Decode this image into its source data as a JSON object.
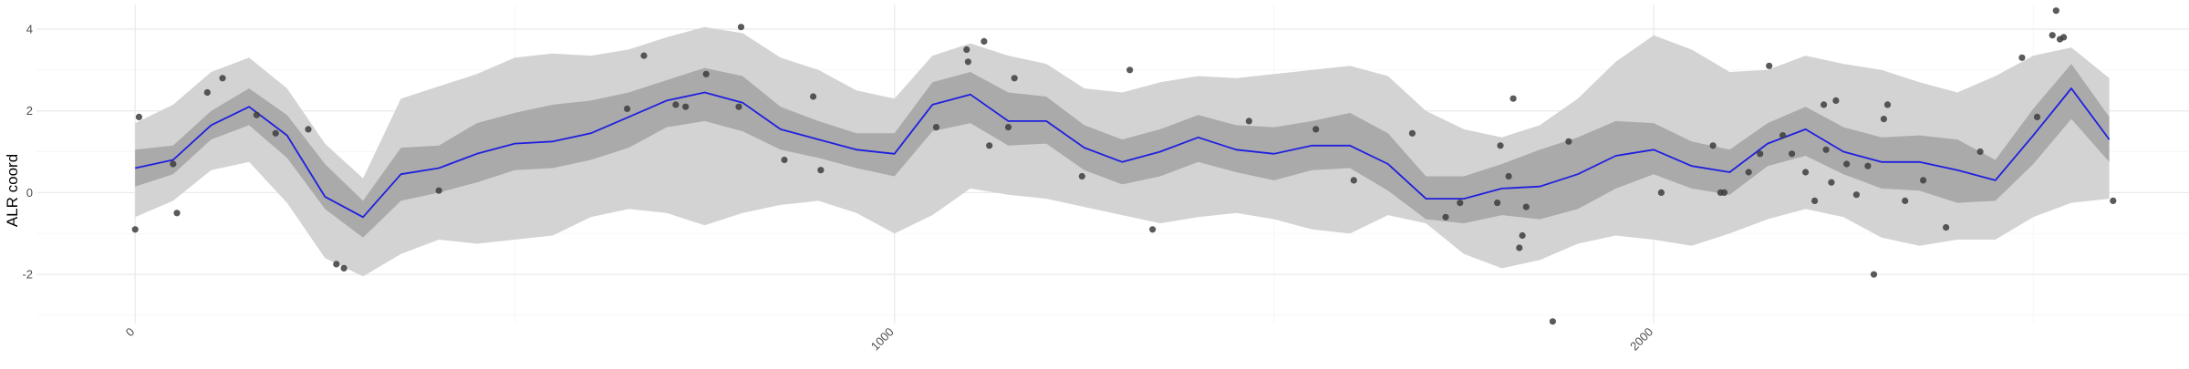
{
  "chart_data": {
    "type": "line",
    "title": "",
    "xlabel": "",
    "ylabel": "ALR coord",
    "xlim": [
      -130,
      2705
    ],
    "ylim": [
      -3.2,
      4.6
    ],
    "x_ticks": [
      0,
      1000,
      2000
    ],
    "x_tick_labels": [
      "0",
      "1000",
      "2000"
    ],
    "y_ticks": [
      -2,
      0,
      2,
      4
    ],
    "y_tick_labels": [
      "-2",
      "0",
      "2",
      "4"
    ],
    "grid": true,
    "colors": {
      "fit_line": "#1f1fe0",
      "inner_band": "#aaaaaa",
      "outer_band": "#d3d3d3",
      "points": "#3d3d3d",
      "grid": "#ebebeb"
    },
    "series": [
      {
        "type": "ribbon",
        "role": "outer_band",
        "x": [
          0,
          50,
          100,
          150,
          200,
          250,
          300,
          350,
          400,
          450,
          500,
          550,
          600,
          650,
          700,
          750,
          800,
          850,
          900,
          950,
          1000,
          1050,
          1100,
          1150,
          1200,
          1250,
          1300,
          1350,
          1400,
          1450,
          1500,
          1550,
          1600,
          1650,
          1700,
          1750,
          1800,
          1850,
          1900,
          1950,
          2000,
          2050,
          2100,
          2150,
          2200,
          2250,
          2300,
          2350,
          2400,
          2450,
          2500,
          2550,
          2600
        ],
        "lower": [
          -0.6,
          -0.2,
          0.55,
          0.75,
          -0.25,
          -1.6,
          -2.05,
          -1.5,
          -1.15,
          -1.25,
          -1.15,
          -1.05,
          -0.6,
          -0.4,
          -0.5,
          -0.8,
          -0.5,
          -0.3,
          -0.2,
          -0.5,
          -1.0,
          -0.55,
          0.1,
          -0.05,
          -0.15,
          -0.35,
          -0.55,
          -0.75,
          -0.6,
          -0.5,
          -0.65,
          -0.9,
          -1.0,
          -0.55,
          -0.75,
          -1.5,
          -1.85,
          -1.65,
          -1.25,
          -1.05,
          -1.15,
          -1.3,
          -1.0,
          -0.65,
          -0.4,
          -0.6,
          -1.1,
          -1.3,
          -1.15,
          -1.15,
          -0.6,
          -0.25,
          -0.15
        ],
        "upper": [
          1.7,
          2.15,
          2.95,
          3.3,
          2.55,
          1.2,
          0.35,
          2.3,
          2.6,
          2.9,
          3.3,
          3.4,
          3.35,
          3.5,
          3.8,
          4.05,
          3.9,
          3.3,
          3.0,
          2.5,
          2.3,
          3.35,
          3.65,
          3.35,
          3.15,
          2.55,
          2.45,
          2.7,
          2.85,
          2.8,
          2.9,
          3.0,
          3.1,
          2.85,
          2.0,
          1.55,
          1.35,
          1.65,
          2.3,
          3.2,
          3.85,
          3.5,
          2.95,
          3.0,
          3.35,
          3.15,
          3.0,
          2.7,
          2.45,
          2.85,
          3.35,
          3.55,
          2.8
        ]
      },
      {
        "type": "ribbon",
        "role": "inner_band",
        "x": [
          0,
          50,
          100,
          150,
          200,
          250,
          300,
          350,
          400,
          450,
          500,
          550,
          600,
          650,
          700,
          750,
          800,
          850,
          900,
          950,
          1000,
          1050,
          1100,
          1150,
          1200,
          1250,
          1300,
          1350,
          1400,
          1450,
          1500,
          1550,
          1600,
          1650,
          1700,
          1750,
          1800,
          1850,
          1900,
          1950,
          2000,
          2050,
          2100,
          2150,
          2200,
          2250,
          2300,
          2350,
          2400,
          2450,
          2500,
          2550,
          2600
        ],
        "lower": [
          0.15,
          0.45,
          1.3,
          1.65,
          0.85,
          -0.4,
          -1.1,
          -0.2,
          0.0,
          0.25,
          0.55,
          0.6,
          0.8,
          1.1,
          1.6,
          1.75,
          1.5,
          1.05,
          0.85,
          0.6,
          0.4,
          1.5,
          1.7,
          1.15,
          1.2,
          0.55,
          0.2,
          0.4,
          0.75,
          0.5,
          0.3,
          0.55,
          0.6,
          0.05,
          -0.65,
          -0.75,
          -0.55,
          -0.65,
          -0.4,
          0.1,
          0.45,
          0.1,
          -0.05,
          0.65,
          0.9,
          0.45,
          0.1,
          0.05,
          -0.25,
          -0.2,
          0.7,
          1.8,
          0.75
        ],
        "upper": [
          1.05,
          1.15,
          2.0,
          2.55,
          1.9,
          0.7,
          -0.2,
          1.1,
          1.15,
          1.7,
          1.95,
          2.15,
          2.25,
          2.45,
          2.75,
          3.05,
          2.85,
          2.1,
          1.75,
          1.45,
          1.45,
          2.7,
          2.95,
          2.45,
          2.35,
          1.65,
          1.3,
          1.55,
          1.9,
          1.65,
          1.6,
          1.75,
          1.95,
          1.45,
          0.4,
          0.4,
          0.7,
          1.05,
          1.35,
          1.75,
          1.7,
          1.25,
          1.05,
          1.7,
          2.1,
          1.6,
          1.35,
          1.4,
          1.3,
          0.8,
          2.05,
          3.15,
          1.85
        ]
      },
      {
        "type": "line",
        "role": "fit",
        "x": [
          0,
          50,
          100,
          150,
          200,
          250,
          300,
          350,
          400,
          450,
          500,
          550,
          600,
          650,
          700,
          750,
          800,
          850,
          900,
          950,
          1000,
          1050,
          1100,
          1150,
          1200,
          1250,
          1300,
          1350,
          1400,
          1450,
          1500,
          1550,
          1600,
          1650,
          1700,
          1750,
          1800,
          1850,
          1900,
          1950,
          2000,
          2050,
          2100,
          2150,
          2200,
          2250,
          2300,
          2350,
          2400,
          2450,
          2500,
          2550,
          2600
        ],
        "y": [
          0.6,
          0.8,
          1.65,
          2.1,
          1.4,
          -0.1,
          -0.6,
          0.45,
          0.6,
          0.95,
          1.2,
          1.25,
          1.45,
          1.85,
          2.25,
          2.45,
          2.2,
          1.55,
          1.3,
          1.05,
          0.95,
          2.15,
          2.4,
          1.75,
          1.75,
          1.1,
          0.75,
          1.0,
          1.35,
          1.05,
          0.95,
          1.15,
          1.15,
          0.7,
          -0.15,
          -0.15,
          0.1,
          0.15,
          0.45,
          0.9,
          1.05,
          0.65,
          0.5,
          1.2,
          1.55,
          1.0,
          0.75,
          0.75,
          0.55,
          0.3,
          1.4,
          2.55,
          1.3
        ]
      },
      {
        "type": "scatter",
        "role": "observations",
        "x": [
          0,
          5,
          50,
          55,
          95,
          115,
          160,
          185,
          228,
          265,
          275,
          400,
          648,
          670,
          712,
          725,
          752,
          795,
          798,
          855,
          893,
          903,
          1055,
          1095,
          1097,
          1118,
          1125,
          1150,
          1158,
          1247,
          1310,
          1340,
          1467,
          1555,
          1605,
          1682,
          1726,
          1745,
          1794,
          1798,
          1809,
          1815,
          1823,
          1827,
          1832,
          1867,
          1888,
          2010,
          2078,
          2088,
          2093,
          2125,
          2140,
          2152,
          2170,
          2182,
          2200,
          2212,
          2224,
          2227,
          2234,
          2240,
          2254,
          2267,
          2282,
          2290,
          2303,
          2308,
          2331,
          2355,
          2385,
          2430,
          2485,
          2505,
          2525,
          2530,
          2535,
          2540,
          2605
        ],
        "y": [
          -0.9,
          1.85,
          0.7,
          -0.5,
          2.45,
          2.8,
          1.9,
          1.45,
          1.55,
          -1.75,
          -1.85,
          0.05,
          2.05,
          3.35,
          2.15,
          2.1,
          2.9,
          2.1,
          4.05,
          0.8,
          2.35,
          0.55,
          1.6,
          3.5,
          3.2,
          3.7,
          1.15,
          1.6,
          2.8,
          0.4,
          3.0,
          -0.9,
          1.75,
          1.55,
          0.3,
          1.45,
          -0.6,
          -0.25,
          -0.25,
          1.15,
          0.4,
          2.3,
          -1.35,
          -1.05,
          -0.35,
          -3.15,
          1.25,
          0.0,
          1.15,
          0.0,
          0.0,
          0.5,
          0.95,
          3.1,
          1.4,
          0.95,
          0.5,
          -0.2,
          2.15,
          1.05,
          0.25,
          2.25,
          0.7,
          -0.05,
          0.65,
          -2.0,
          1.8,
          2.15,
          -0.2,
          0.3,
          -0.85,
          1.0,
          3.3,
          1.85,
          3.85,
          4.45,
          3.75,
          3.8,
          -0.2
        ]
      }
    ]
  }
}
